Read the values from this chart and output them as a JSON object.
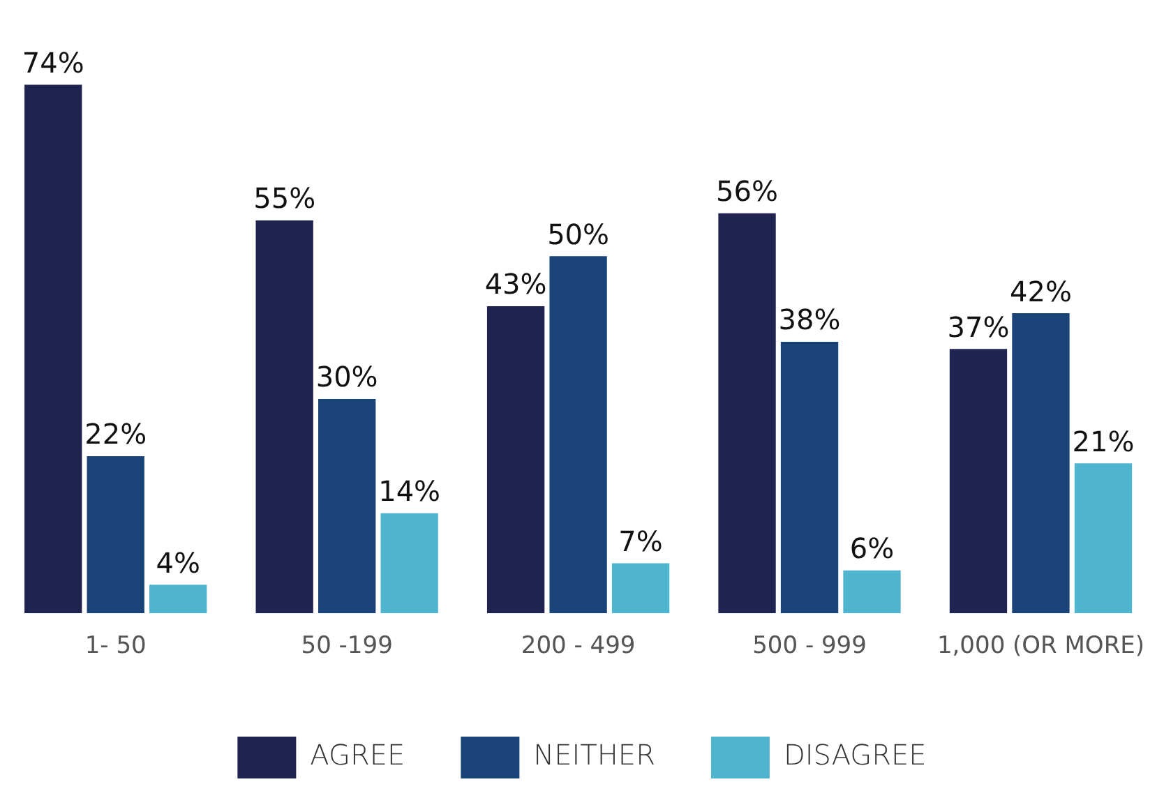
{
  "chart_data": {
    "type": "bar",
    "categories": [
      "1- 50",
      "50 -199",
      "200 - 499",
      "500 - 999",
      "1,000 (OR MORE)"
    ],
    "series": [
      {
        "name": "AGREE",
        "color": "#1e2350",
        "values": [
          74,
          55,
          43,
          56,
          37
        ],
        "value_labels": [
          "74%",
          "55%",
          "43%",
          "56%",
          "37%"
        ]
      },
      {
        "name": "NEITHER",
        "color": "#1a4478",
        "values": [
          22,
          30,
          50,
          38,
          42
        ],
        "value_labels": [
          "22%",
          "30%",
          "50%",
          "38%",
          "42%"
        ]
      },
      {
        "name": "DISAGREE",
        "color": "#4fb5cf",
        "values": [
          4,
          14,
          7,
          6,
          21
        ],
        "value_labels": [
          "4%",
          "14%",
          "7%",
          "6%",
          "21%"
        ]
      }
    ],
    "legend": "bottom",
    "grid": false
  }
}
